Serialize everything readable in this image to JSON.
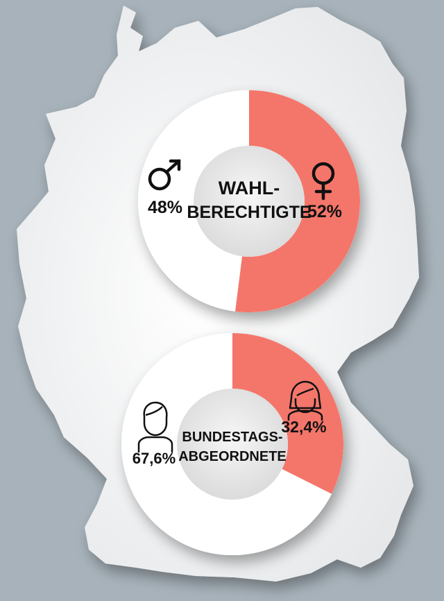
{
  "colors": {
    "background": "#a7b2ba",
    "map": "#eff0f1",
    "female": "#f4766a",
    "male": "#ffffff",
    "hole": "#e3e3e3",
    "text": "#111111"
  },
  "chart_data": [
    {
      "type": "pie",
      "style": "donut",
      "title": "WAHL-BERECHTIGTE",
      "title_lines": [
        "WAHL-",
        "BERECHTIGTE"
      ],
      "slices": [
        {
          "name": "female",
          "icon": "female-symbol-icon",
          "value": 52,
          "label": "52%"
        },
        {
          "name": "male",
          "icon": "male-symbol-icon",
          "value": 48,
          "label": "48%"
        }
      ]
    },
    {
      "type": "pie",
      "style": "donut",
      "title": "BUNDESTAGS-ABGEORDNETE",
      "title_lines": [
        "BUNDESTAGS-",
        "ABGEORDNETE"
      ],
      "slices": [
        {
          "name": "female",
          "icon": "woman-avatar-icon",
          "value": 32.4,
          "label": "32,4%"
        },
        {
          "name": "male",
          "icon": "man-avatar-icon",
          "value": 67.6,
          "label": "67,6%"
        }
      ]
    }
  ]
}
